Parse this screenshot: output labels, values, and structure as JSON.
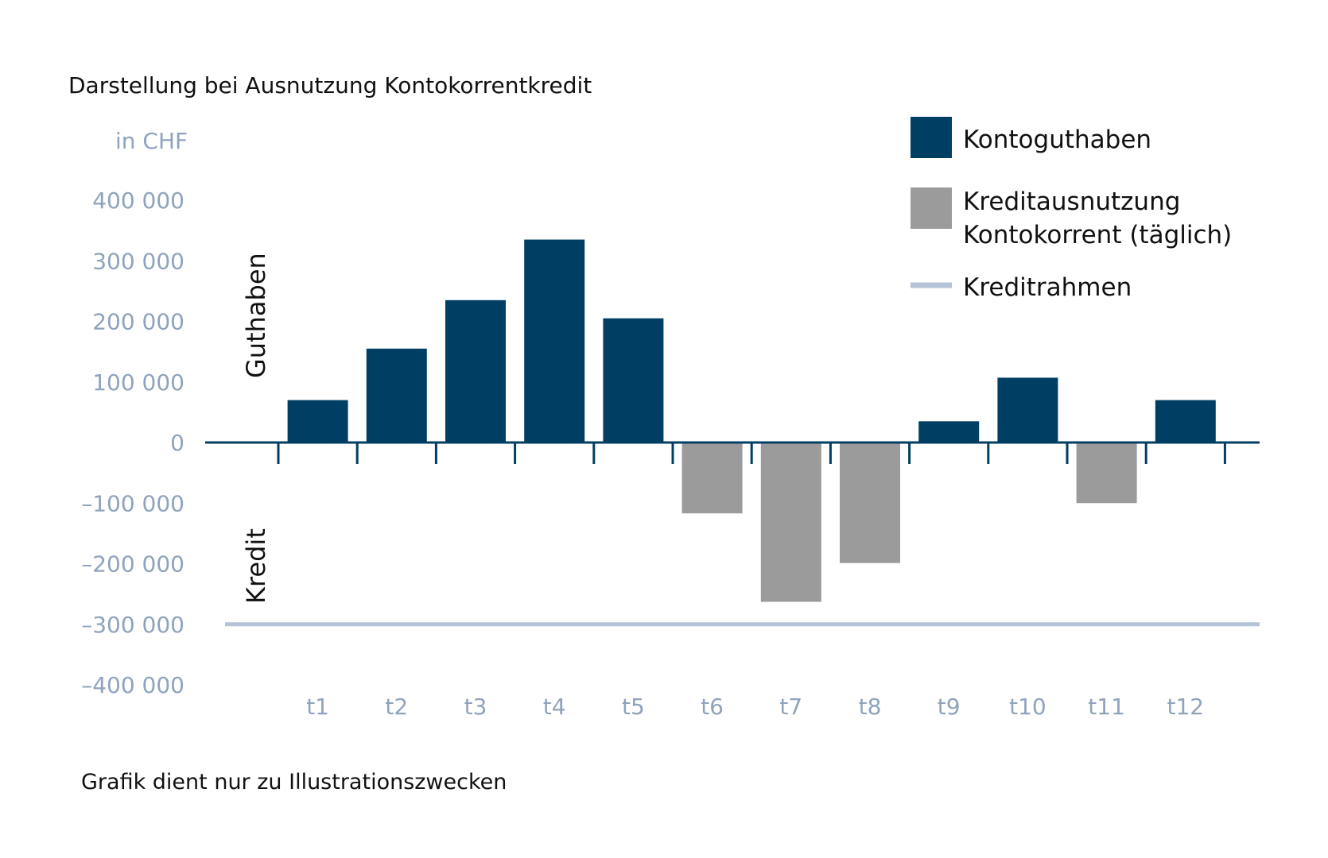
{
  "chart_data": {
    "type": "bar",
    "title": "Darstellung bei Ausnutzung Kontokorrentkredit",
    "unit_label": "in CHF",
    "footnote": "Grafik dient nur zu Illustrationszwecken",
    "region_labels": {
      "positive": "Guthaben",
      "negative": "Kredit"
    },
    "categories": [
      "t1",
      "t2",
      "t3",
      "t4",
      "t5",
      "t6",
      "t7",
      "t8",
      "t9",
      "t10",
      "t11",
      "t12"
    ],
    "series": [
      {
        "name": "Kontoguthaben",
        "color": "#003f63",
        "values": [
          70000,
          155000,
          235000,
          335000,
          205000,
          null,
          null,
          null,
          35000,
          107000,
          null,
          70000
        ]
      },
      {
        "name": "Kreditausnutzung Kontokorrent (täglich)",
        "name_lines": [
          "Kreditausnutzung",
          "Kontokorrent  (täglich)"
        ],
        "color": "#9b9b9b",
        "values": [
          null,
          null,
          null,
          null,
          null,
          -117000,
          -263000,
          -199000,
          null,
          null,
          -100000,
          null
        ]
      }
    ],
    "reference_lines": [
      {
        "name": "Kreditrahmen",
        "value": -300000,
        "color": "#b5c3d6"
      }
    ],
    "yticks": [
      400000,
      300000,
      200000,
      100000,
      0,
      -100000,
      -200000,
      -300000,
      -400000
    ],
    "ytick_labels": [
      "400 000",
      "300 000",
      "200 000",
      "100 000",
      "0",
      "–100 000",
      "–200 000",
      "–300 000",
      "–400 000"
    ],
    "ylim": [
      -400000,
      400000
    ],
    "grid": false,
    "legend_position": "top-right",
    "colors": {
      "axis": "#003f63",
      "tick_label": "#8fa3bd",
      "text": "#111111"
    }
  }
}
